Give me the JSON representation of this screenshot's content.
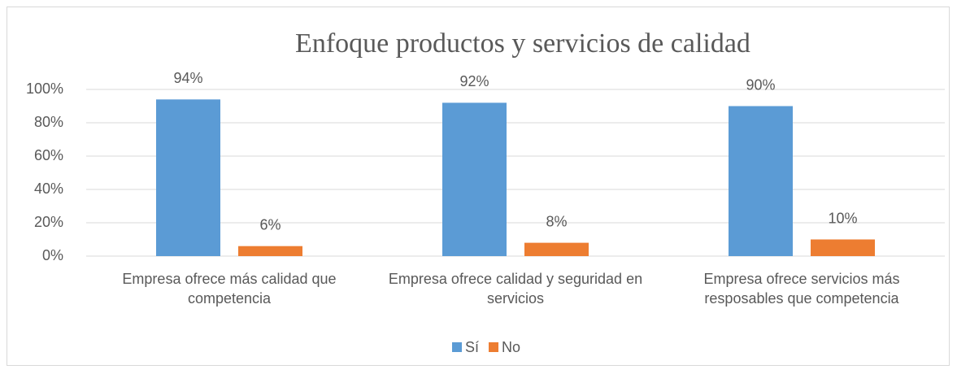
{
  "chart_data": {
    "type": "bar",
    "title": "Enfoque productos y servicios de calidad",
    "categories": [
      "Empresa ofrece más calidad que competencia",
      "Empresa ofrece calidad y seguridad en servicios",
      "Empresa ofrece servicios más resposables que competencia"
    ],
    "series": [
      {
        "name": "Sí",
        "color": "#5b9bd5",
        "values": [
          94,
          92,
          90
        ],
        "value_labels": [
          "94%",
          "92%",
          "90%"
        ]
      },
      {
        "name": "No",
        "color": "#ed7d31",
        "values": [
          6,
          8,
          10
        ],
        "value_labels": [
          "6%",
          "8%",
          "10%"
        ]
      }
    ],
    "ylim": [
      0,
      100
    ],
    "yticks": [
      {
        "value": 0,
        "label": "0%"
      },
      {
        "value": 20,
        "label": "20%"
      },
      {
        "value": 40,
        "label": "40%"
      },
      {
        "value": 60,
        "label": "60%"
      },
      {
        "value": 80,
        "label": "80%"
      },
      {
        "value": 100,
        "label": "100%"
      }
    ],
    "grid": true,
    "legend": "bottom"
  }
}
